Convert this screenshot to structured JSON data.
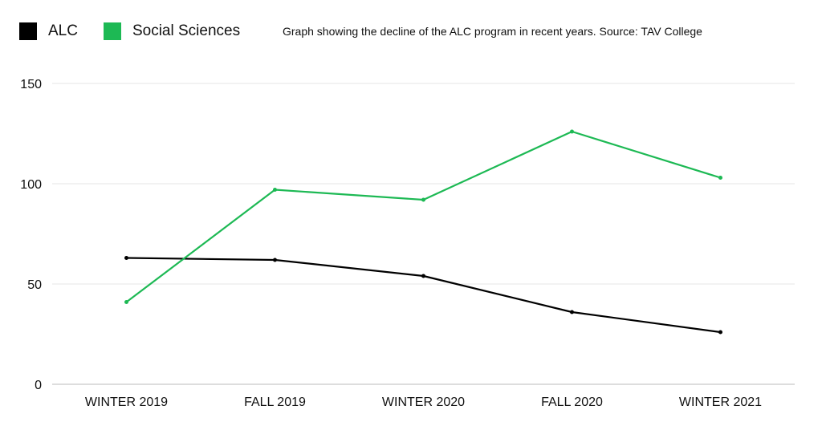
{
  "chart_data": {
    "type": "line",
    "title": "Graph showing the decline of the ALC program in recent years. Source: TAV College",
    "categories": [
      "WINTER 2019",
      "FALL 2019",
      "WINTER 2020",
      "FALL 2020",
      "WINTER 2021"
    ],
    "series": [
      {
        "name": "ALC",
        "color": "#000000",
        "values": [
          63,
          62,
          54,
          36,
          26
        ]
      },
      {
        "name": "Social Sciences",
        "color": "#1db954",
        "values": [
          41,
          97,
          92,
          126,
          103
        ]
      }
    ],
    "xlabel": "",
    "ylabel": "",
    "ylim": [
      0,
      150
    ],
    "yticks": [
      0,
      50,
      100,
      150
    ],
    "grid": true,
    "legend_position": "top-left"
  }
}
